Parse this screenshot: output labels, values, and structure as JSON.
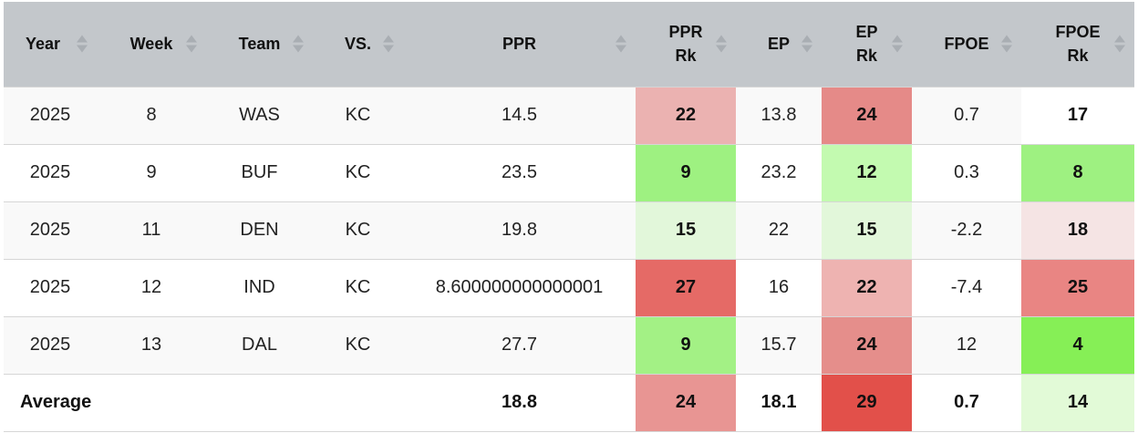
{
  "headers": [
    {
      "l1": "Year",
      "l2": ""
    },
    {
      "l1": "Week",
      "l2": ""
    },
    {
      "l1": "Team",
      "l2": ""
    },
    {
      "l1": "VS.",
      "l2": ""
    },
    {
      "l1": "PPR",
      "l2": ""
    },
    {
      "l1": "PPR",
      "l2": "Rk"
    },
    {
      "l1": "EP",
      "l2": ""
    },
    {
      "l1": "EP",
      "l2": "Rk"
    },
    {
      "l1": "FPOE",
      "l2": ""
    },
    {
      "l1": "FPOE",
      "l2": "Rk"
    }
  ],
  "rows": [
    {
      "year": "2025",
      "week": "8",
      "team": "WAS",
      "vs": "KC",
      "ppr": "14.5",
      "ppr_rk": "22",
      "ep": "13.8",
      "ep_rk": "24",
      "fpoe": "0.7",
      "fpoe_rk": "17"
    },
    {
      "year": "2025",
      "week": "9",
      "team": "BUF",
      "vs": "KC",
      "ppr": "23.5",
      "ppr_rk": "9",
      "ep": "23.2",
      "ep_rk": "12",
      "fpoe": "0.3",
      "fpoe_rk": "8"
    },
    {
      "year": "2025",
      "week": "11",
      "team": "DEN",
      "vs": "KC",
      "ppr": "19.8",
      "ppr_rk": "15",
      "ep": "22",
      "ep_rk": "15",
      "fpoe": "-2.2",
      "fpoe_rk": "18"
    },
    {
      "year": "2025",
      "week": "12",
      "team": "IND",
      "vs": "KC",
      "ppr": "8.600000000000001",
      "ppr_rk": "27",
      "ep": "16",
      "ep_rk": "22",
      "fpoe": "-7.4",
      "fpoe_rk": "25"
    },
    {
      "year": "2025",
      "week": "13",
      "team": "DAL",
      "vs": "KC",
      "ppr": "27.7",
      "ppr_rk": "9",
      "ep": "15.7",
      "ep_rk": "24",
      "fpoe": "12",
      "fpoe_rk": "4"
    }
  ],
  "average": {
    "label": "Average",
    "ppr": "18.8",
    "ppr_rk": "24",
    "ep": "18.1",
    "ep_rk": "29",
    "fpoe": "0.7",
    "fpoe_rk": "14"
  },
  "colors": {
    "header_bg": "#c3c7cb",
    "rank_cells": [
      {
        "ppr_rk": "#ebb2b1",
        "ep_rk": "#e58a88",
        "fpoe_rk": "#ffffff"
      },
      {
        "ppr_rk": "#9ef181",
        "ep_rk": "#c3fab0",
        "fpoe_rk": "#9ef181"
      },
      {
        "ppr_rk": "#e2f7da",
        "ep_rk": "#e2f7da",
        "fpoe_rk": "#f5e4e4"
      },
      {
        "ppr_rk": "#e56a66",
        "ep_rk": "#eeb3b1",
        "fpoe_rk": "#e98583"
      },
      {
        "ppr_rk": "#a3f185",
        "ep_rk": "#e58e8b",
        "fpoe_rk": "#86ef56"
      }
    ],
    "average": {
      "ppr_rk": "#e89593",
      "ep_rk": "#e2504a",
      "fpoe_rk": "#e2fad7"
    }
  }
}
